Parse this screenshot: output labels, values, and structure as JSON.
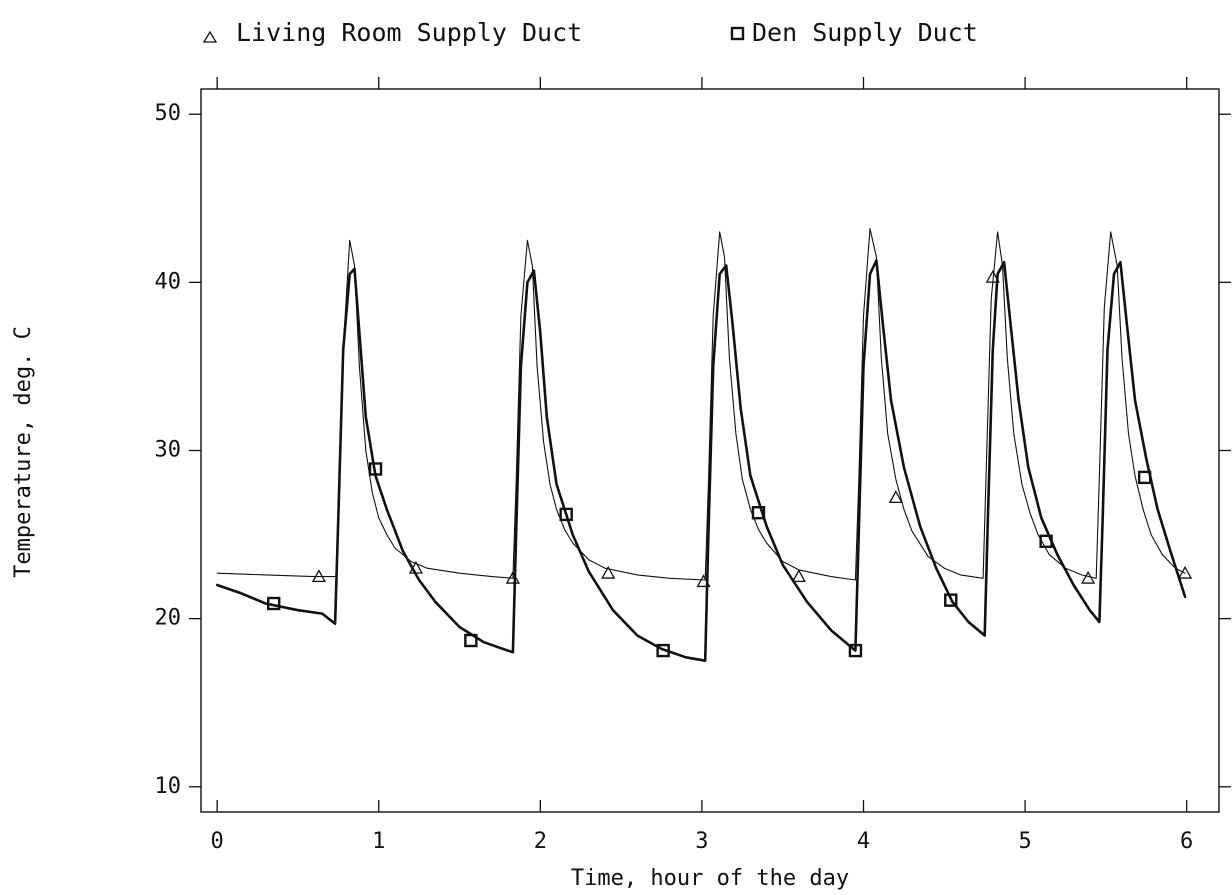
{
  "chart_data": {
    "type": "line",
    "title": "",
    "xlabel": "Time, hour of the day",
    "ylabel": "Temperature, deg. C",
    "xlim": [
      -0.1,
      6.2
    ],
    "ylim": [
      8.5,
      51.5
    ],
    "x_ticks": [
      0,
      1,
      2,
      3,
      4,
      5,
      6
    ],
    "y_ticks": [
      10,
      20,
      30,
      40,
      50
    ],
    "grid": false,
    "legend_position": "top",
    "colors": {
      "line": "#111111",
      "background": "#ffffff"
    },
    "series": [
      {
        "name": "Living Room Supply Duct",
        "marker": "triangle",
        "stroke_weight": "thin",
        "x": [
          0.0,
          0.3,
          0.6,
          0.735,
          0.75,
          0.78,
          0.82,
          0.85,
          0.88,
          0.92,
          0.96,
          1.0,
          1.05,
          1.1,
          1.2,
          1.3,
          1.5,
          1.7,
          1.83,
          1.85,
          1.88,
          1.92,
          1.95,
          1.98,
          2.02,
          2.06,
          2.1,
          2.15,
          2.2,
          2.3,
          2.4,
          2.6,
          2.8,
          3.02,
          3.04,
          3.07,
          3.11,
          3.14,
          3.17,
          3.21,
          3.25,
          3.3,
          3.35,
          3.4,
          3.5,
          3.6,
          3.8,
          3.95,
          3.97,
          4.0,
          4.04,
          4.08,
          4.11,
          4.15,
          4.2,
          4.25,
          4.3,
          4.4,
          4.5,
          4.6,
          4.74,
          4.76,
          4.79,
          4.83,
          4.86,
          4.89,
          4.93,
          4.98,
          5.03,
          5.08,
          5.15,
          5.25,
          5.35,
          5.44,
          5.46,
          5.49,
          5.53,
          5.57,
          5.6,
          5.64,
          5.68,
          5.73,
          5.78,
          5.85,
          5.93,
          5.99
        ],
        "y": [
          22.7,
          22.6,
          22.5,
          22.5,
          26.0,
          36.0,
          42.5,
          41.0,
          35.0,
          30.0,
          27.5,
          26.0,
          25.0,
          24.2,
          23.4,
          23.0,
          22.7,
          22.5,
          22.4,
          28.0,
          38.0,
          42.5,
          41.0,
          35.0,
          30.5,
          28.0,
          26.5,
          25.3,
          24.5,
          23.5,
          23.0,
          22.6,
          22.4,
          22.3,
          28.0,
          38.0,
          43.0,
          41.5,
          35.5,
          31.0,
          28.3,
          26.5,
          25.3,
          24.5,
          23.4,
          22.9,
          22.5,
          22.3,
          28.0,
          38.0,
          43.2,
          41.5,
          35.5,
          31.0,
          28.3,
          26.5,
          25.2,
          23.7,
          23.0,
          22.6,
          22.4,
          29.0,
          39.0,
          43.0,
          41.0,
          35.5,
          31.0,
          28.0,
          26.3,
          25.0,
          23.8,
          23.0,
          22.6,
          22.4,
          28.5,
          38.5,
          43.0,
          41.0,
          35.5,
          31.0,
          28.5,
          26.5,
          25.0,
          23.8,
          23.0,
          22.7
        ],
        "marker_x": [
          0.63,
          1.23,
          1.83,
          2.42,
          3.01,
          3.6,
          4.2,
          4.8,
          5.39,
          5.99
        ],
        "marker_y": [
          22.5,
          23.0,
          22.4,
          22.7,
          22.2,
          22.5,
          27.2,
          40.3,
          22.4,
          22.7
        ]
      },
      {
        "name": "Den Supply Duct",
        "marker": "square",
        "stroke_weight": "thick",
        "x": [
          0.0,
          0.15,
          0.3,
          0.5,
          0.65,
          0.73,
          0.75,
          0.78,
          0.82,
          0.85,
          0.88,
          0.92,
          0.98,
          1.05,
          1.15,
          1.25,
          1.35,
          1.5,
          1.65,
          1.83,
          1.85,
          1.88,
          1.92,
          1.96,
          2.0,
          2.04,
          2.1,
          2.2,
          2.3,
          2.45,
          2.6,
          2.75,
          2.9,
          3.02,
          3.04,
          3.07,
          3.11,
          3.15,
          3.19,
          3.24,
          3.3,
          3.4,
          3.5,
          3.65,
          3.8,
          3.95,
          3.97,
          4.0,
          4.04,
          4.08,
          4.12,
          4.17,
          4.25,
          4.35,
          4.45,
          4.55,
          4.65,
          4.75,
          4.77,
          4.8,
          4.83,
          4.87,
          4.91,
          4.96,
          5.02,
          5.1,
          5.2,
          5.3,
          5.4,
          5.46,
          5.48,
          5.51,
          5.55,
          5.59,
          5.63,
          5.68,
          5.75,
          5.82,
          5.9,
          5.99
        ],
        "y": [
          22.0,
          21.5,
          20.9,
          20.5,
          20.3,
          19.7,
          26.0,
          36.0,
          40.5,
          40.8,
          37.0,
          32.0,
          28.5,
          26.5,
          24.0,
          22.3,
          21.0,
          19.5,
          18.6,
          18.0,
          25.0,
          35.0,
          40.0,
          40.7,
          37.0,
          32.0,
          28.0,
          25.0,
          22.8,
          20.5,
          19.0,
          18.2,
          17.7,
          17.5,
          25.0,
          35.0,
          40.5,
          41.0,
          37.5,
          32.5,
          28.5,
          25.5,
          23.2,
          21.0,
          19.3,
          18.1,
          25.0,
          35.0,
          40.5,
          41.3,
          37.5,
          33.0,
          29.0,
          25.5,
          23.0,
          21.0,
          19.8,
          19.0,
          26.0,
          36.0,
          40.5,
          41.2,
          37.5,
          33.0,
          29.0,
          26.0,
          23.8,
          22.0,
          20.5,
          19.8,
          26.0,
          36.0,
          40.5,
          41.2,
          37.5,
          33.0,
          29.5,
          26.5,
          24.0,
          21.3
        ],
        "marker_x": [
          0.35,
          0.98,
          1.57,
          2.16,
          2.76,
          3.35,
          3.95,
          4.54,
          5.13,
          5.74
        ],
        "marker_y": [
          20.9,
          28.9,
          18.7,
          26.2,
          18.1,
          26.3,
          18.1,
          21.1,
          24.6,
          28.4
        ]
      }
    ]
  }
}
